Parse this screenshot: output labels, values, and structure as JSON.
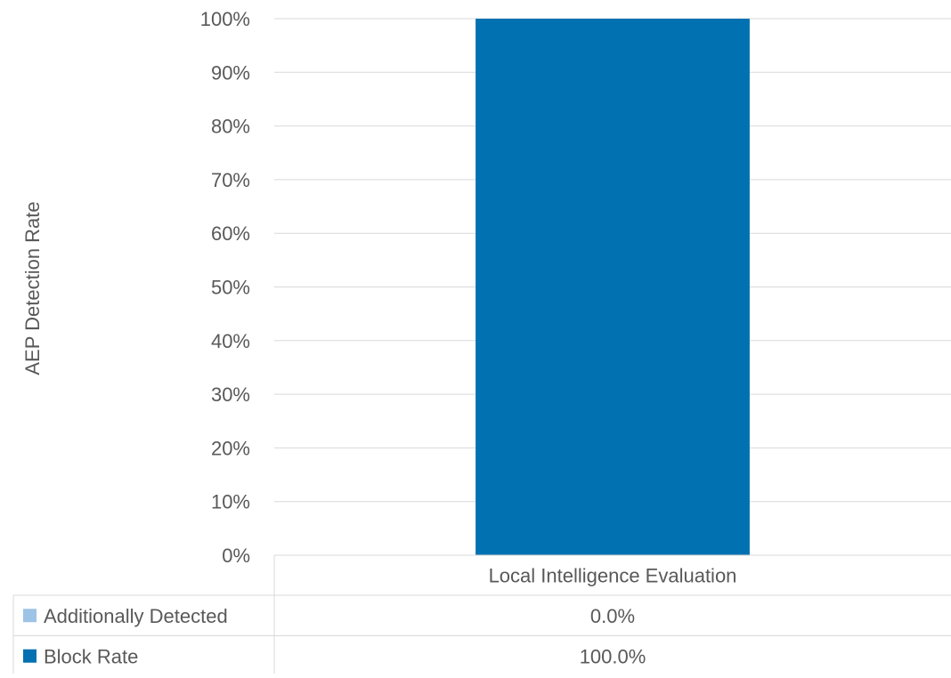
{
  "chart_data": {
    "type": "bar",
    "stacked": true,
    "ylabel": "AEP Detection Rate",
    "xlabel": "",
    "ylim": [
      0,
      100
    ],
    "yticks": [
      "0%",
      "10%",
      "20%",
      "30%",
      "40%",
      "50%",
      "60%",
      "70%",
      "80%",
      "90%",
      "100%"
    ],
    "categories": [
      "Local Intelligence Evaluation"
    ],
    "series": [
      {
        "name": "Block Rate",
        "values": [
          100.0
        ],
        "color": "#0271b1",
        "label": "100.0%"
      },
      {
        "name": "Additionally Detected",
        "values": [
          0.0
        ],
        "color": "#9dc3e6",
        "label": "0.0%"
      }
    ],
    "data_table": {
      "rows": [
        {
          "name": "Additionally Detected",
          "cells": [
            "0.0%"
          ]
        },
        {
          "name": "Block Rate",
          "cells": [
            "100.0%"
          ]
        }
      ]
    },
    "grid": true,
    "legend": "data-table"
  },
  "colors": {
    "gridline": "#d9d9d9",
    "text": "#595959",
    "table_border": "#d9d9d9"
  }
}
